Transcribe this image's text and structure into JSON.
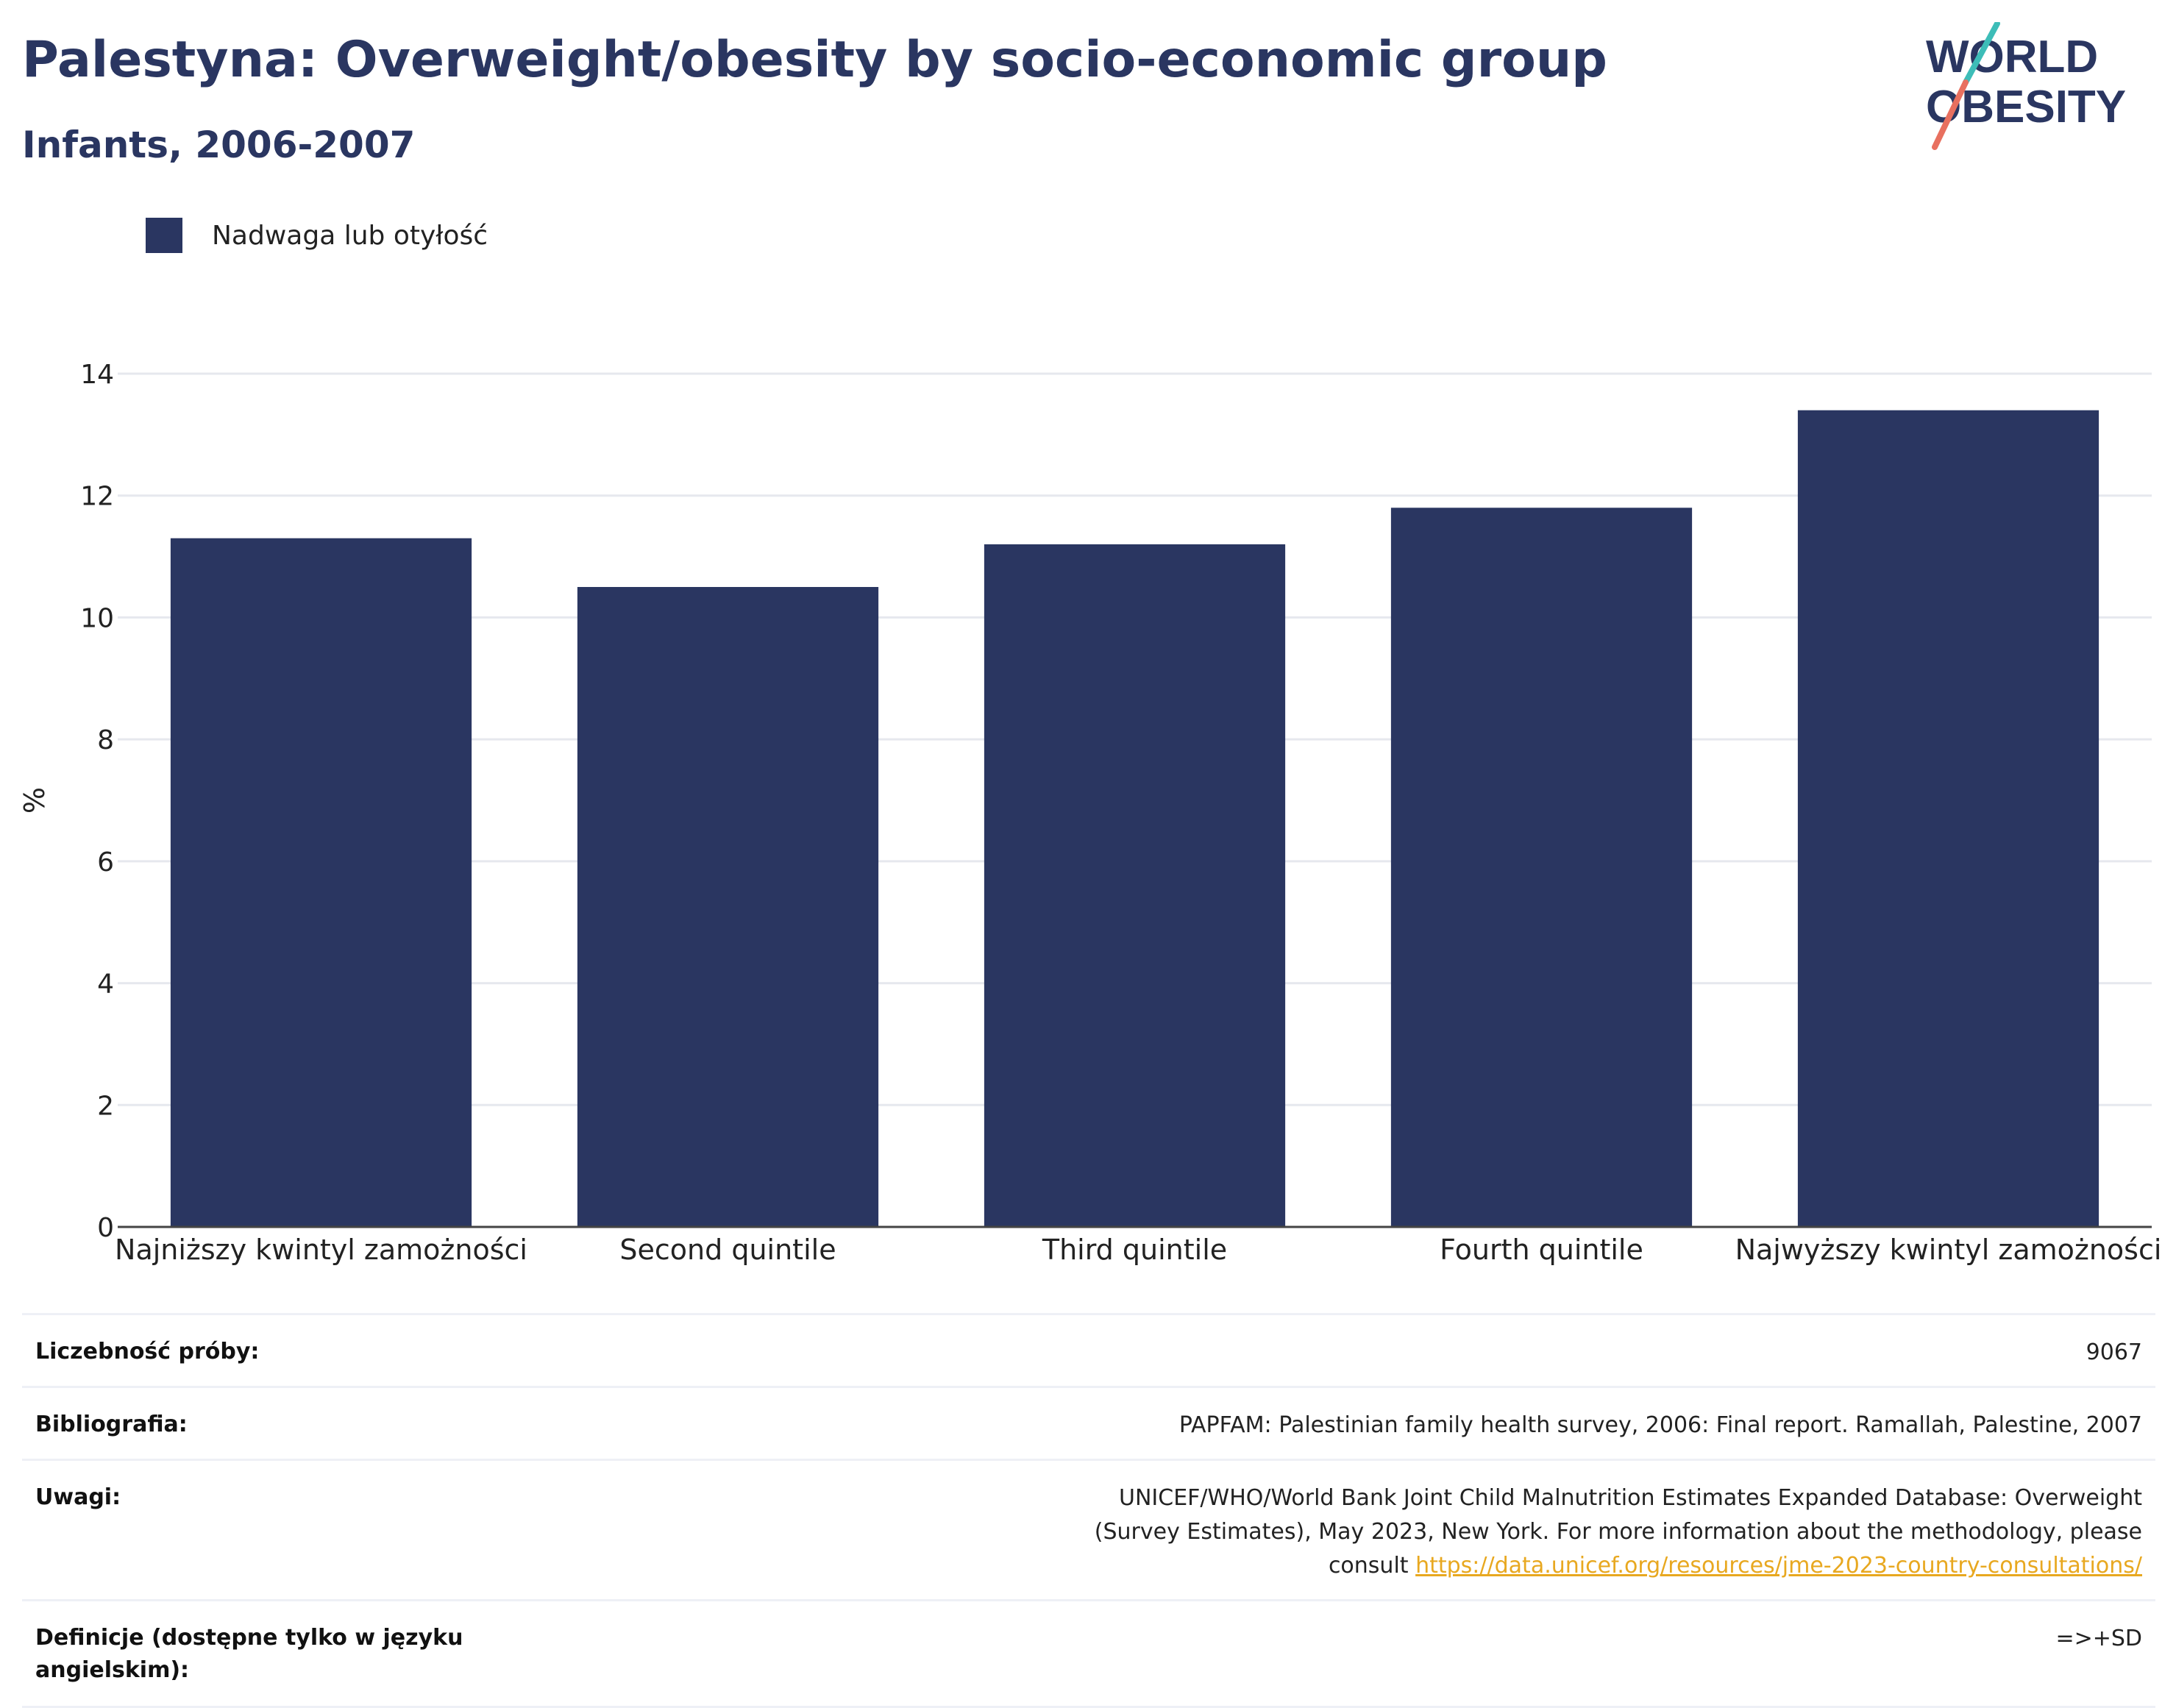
{
  "header": {
    "title": "Palestyna: Overweight/obesity by socio-economic group",
    "subtitle": "Infants, 2006-2007"
  },
  "logo": {
    "line1": "WORLD",
    "line2": "OBESITY"
  },
  "legend": {
    "label": "Nadwaga lub otyłość"
  },
  "colors": {
    "bar": "#2a3661",
    "accent_teal": "#3dbdb8",
    "accent_coral": "#e8705f",
    "link": "#e8a820"
  },
  "chart_data": {
    "type": "bar",
    "categories": [
      "Najniższy kwintyl zamożności",
      "Second quintile",
      "Third quintile",
      "Fourth quintile",
      "Najwyższy kwintyl zamożności"
    ],
    "series": [
      {
        "name": "Nadwaga lub otyłość",
        "values": [
          11.3,
          10.5,
          11.2,
          11.8,
          13.4
        ]
      }
    ],
    "ylabel": "%",
    "ylim": [
      0,
      14
    ],
    "yticks": [
      0,
      2,
      4,
      6,
      8,
      10,
      12,
      14
    ],
    "grid": true,
    "legend_position": "top-left"
  },
  "info": {
    "sample_label": "Liczebność próby:",
    "sample_value": "9067",
    "bib_label": "Bibliografia:",
    "bib_value": "PAPFAM: Palestinian family health survey, 2006: Final report. Ramallah, Palestine, 2007",
    "notes_label": "Uwagi:",
    "notes_value": "UNICEF/WHO/World Bank Joint Child Malnutrition Estimates Expanded Database: Overweight (Survey Estimates), May 2023, New York. For more information about the methodology, please consult",
    "notes_link": "https://data.unicef.org/resources/jme-2023-country-consultations/",
    "def_label": "Definicje (dostępne tylko w języku angielskim):",
    "def_value": "=>+SD"
  }
}
